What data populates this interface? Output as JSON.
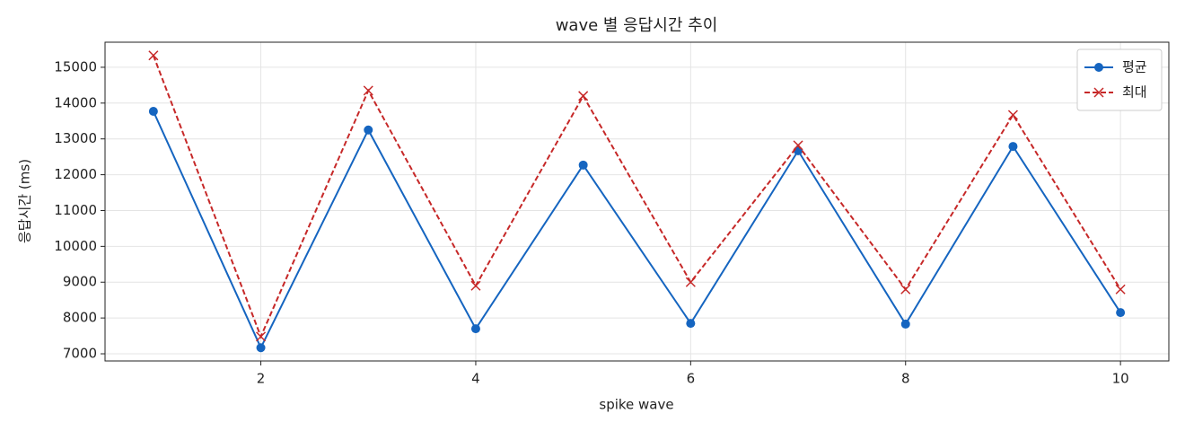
{
  "chart_data": {
    "type": "line",
    "title": "wave 별 응답시간 추이",
    "x_label": "spike wave",
    "y_label": "응답시간 (ms)",
    "x": [
      1,
      2,
      3,
      4,
      5,
      6,
      7,
      8,
      9,
      10
    ],
    "series": [
      {
        "name": "평균",
        "color": "#1565c0",
        "style": "solid",
        "marker": "circle",
        "values": [
          13770,
          7170,
          13250,
          7700,
          12270,
          7850,
          12670,
          7830,
          12790,
          8150
        ]
      },
      {
        "name": "최대",
        "color": "#c62828",
        "style": "dashed",
        "marker": "x",
        "values": [
          15330,
          7480,
          14350,
          8900,
          14200,
          9000,
          12820,
          8800,
          13670,
          8800
        ]
      }
    ],
    "xlim": [
      0.55,
      10.45
    ],
    "xticks": [
      2,
      4,
      6,
      8,
      10
    ],
    "ylim": [
      6800,
      15700
    ],
    "yticks": [
      7000,
      8000,
      9000,
      10000,
      11000,
      12000,
      13000,
      14000,
      15000
    ],
    "grid": true,
    "legend": "upper right"
  }
}
